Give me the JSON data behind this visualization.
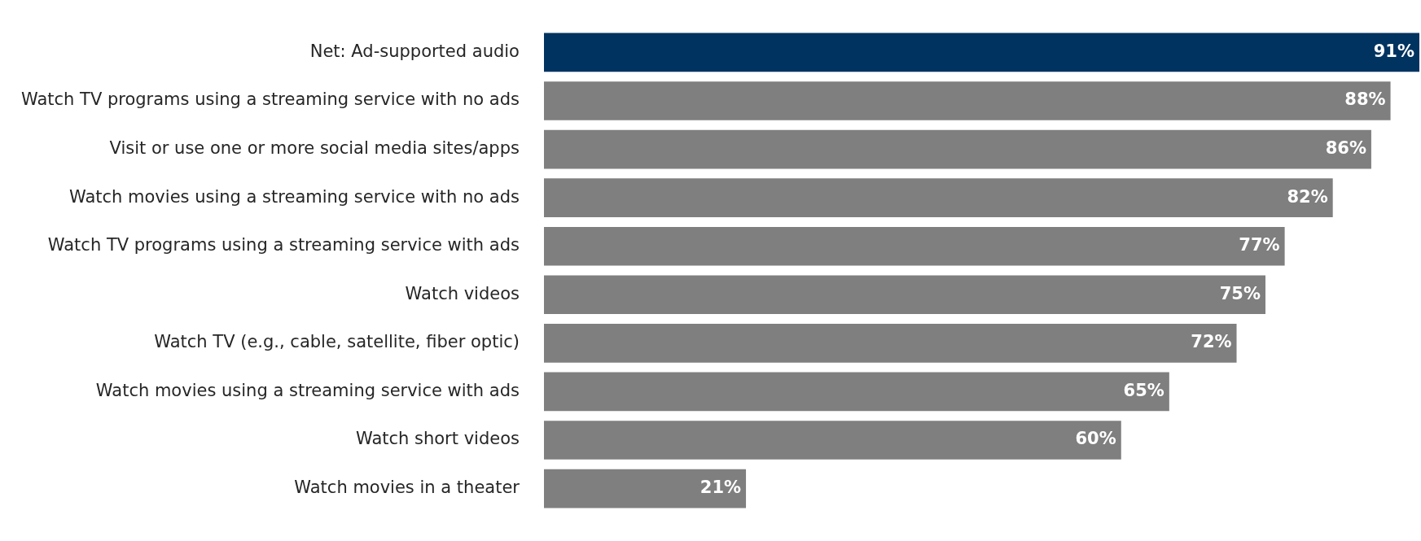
{
  "chart_data": {
    "type": "bar",
    "orientation": "horizontal",
    "categories": [
      "Net: Ad-supported audio",
      "Watch TV programs using a streaming service with no ads",
      "Visit or use one or more social media sites/apps",
      "Watch movies using a streaming service with no ads",
      "Watch TV programs using a streaming service with ads",
      "Watch videos",
      "Watch TV (e.g., cable, satellite, fiber optic)",
      "Watch movies using a streaming service with ads",
      "Watch short videos",
      "Watch movies in a theater"
    ],
    "values": [
      91,
      88,
      86,
      82,
      77,
      75,
      72,
      65,
      60,
      21
    ],
    "colors": [
      "#003360",
      "#7f7f7f",
      "#7f7f7f",
      "#7f7f7f",
      "#7f7f7f",
      "#7f7f7f",
      "#7f7f7f",
      "#7f7f7f",
      "#7f7f7f",
      "#7f7f7f"
    ],
    "value_labels": [
      "91%",
      "88%",
      "86%",
      "82%",
      "77%",
      "75%",
      "72%",
      "65%",
      "60%",
      "21%"
    ],
    "xlim": [
      0,
      91
    ],
    "grid": false,
    "legend": false,
    "tick_labels": "y"
  }
}
